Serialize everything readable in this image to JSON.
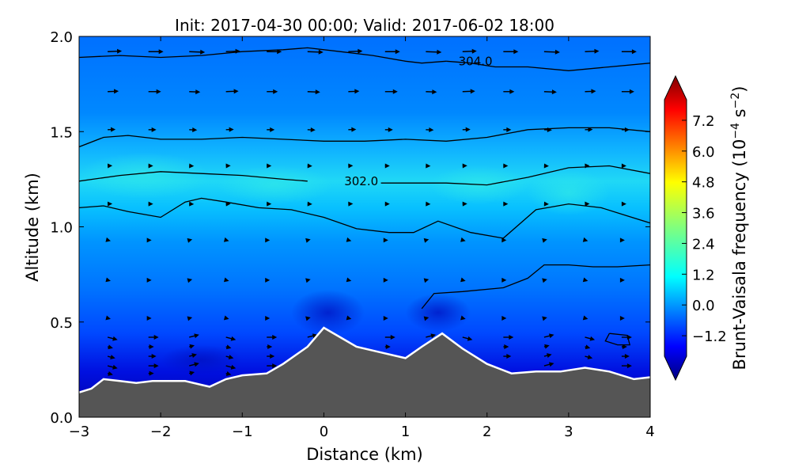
{
  "chart_data": {
    "type": "heatmap",
    "title": "Init: 2017-04-30 00:00; Valid: 2017-06-02 18:00",
    "xlabel": "Distance (km)",
    "ylabel": "Altitude (km)",
    "colorbar_label": "Brunt-Vaisala frequency (10$^{-4}$ s$^{-2}$)",
    "colorbar_label_text": "Brunt-Vaisala frequency (10",
    "colorbar_label_exp": "−4",
    "colorbar_label_unit": " s",
    "colorbar_label_unit_exp": "−2",
    "colorbar_label_close": ")",
    "xlim": [
      -3,
      4
    ],
    "ylim": [
      0.0,
      2.0
    ],
    "x_ticks": [
      -3,
      -2,
      -1,
      0,
      1,
      2,
      3,
      4
    ],
    "x_tick_labels": [
      "−3",
      "−2",
      "−1",
      "0",
      "1",
      "2",
      "3",
      "4"
    ],
    "y_ticks": [
      0.0,
      0.5,
      1.0,
      1.5,
      2.0
    ],
    "y_tick_labels": [
      "0.0",
      "0.5",
      "1.0",
      "1.5",
      "2.0"
    ],
    "colorbar_range": [
      -2.0,
      8.0
    ],
    "colorbar_ticks": [
      -1.2,
      0.0,
      1.2,
      2.4,
      3.6,
      4.8,
      6.0,
      7.2
    ],
    "colorbar_tick_labels": [
      "−1.2",
      "0.0",
      "1.2",
      "2.4",
      "3.6",
      "4.8",
      "6.0",
      "7.2"
    ],
    "colormap": "jet",
    "terrain_color": "#555555",
    "terrain_profile": {
      "x": [
        -3.0,
        -2.85,
        -2.7,
        -2.5,
        -2.3,
        -2.1,
        -1.9,
        -1.7,
        -1.5,
        -1.4,
        -1.2,
        -1.0,
        -0.7,
        -0.5,
        -0.2,
        0.0,
        0.2,
        0.4,
        0.7,
        1.0,
        1.2,
        1.45,
        1.7,
        2.0,
        2.3,
        2.6,
        2.9,
        3.2,
        3.5,
        3.8,
        4.0
      ],
      "y": [
        0.13,
        0.15,
        0.2,
        0.19,
        0.18,
        0.19,
        0.19,
        0.19,
        0.17,
        0.16,
        0.2,
        0.22,
        0.23,
        0.28,
        0.37,
        0.47,
        0.42,
        0.37,
        0.34,
        0.31,
        0.37,
        0.44,
        0.36,
        0.28,
        0.23,
        0.24,
        0.24,
        0.26,
        0.24,
        0.2,
        0.21
      ]
    },
    "potential_temperature_contours": [
      {
        "label": "304.0",
        "label_at": [
          1.65,
          1.87
        ],
        "x": [
          -3.0,
          -2.5,
          -2.0,
          -1.5,
          -1.0,
          -0.5,
          -0.2,
          0.2,
          0.6,
          1.0,
          1.2,
          1.5
        ],
        "y": [
          1.89,
          1.9,
          1.89,
          1.9,
          1.92,
          1.93,
          1.94,
          1.92,
          1.9,
          1.87,
          1.86,
          1.87
        ]
      },
      {
        "x": [
          1.5,
          1.8,
          2.1,
          2.5,
          3.0,
          3.5,
          4.0
        ],
        "y": [
          1.87,
          1.86,
          1.84,
          1.84,
          1.82,
          1.84,
          1.86
        ]
      },
      {
        "x": [
          -3.0,
          -2.7,
          -2.4,
          -2.0,
          -1.5,
          -1.0,
          -0.5,
          0.0,
          0.5,
          1.0,
          1.5,
          2.0,
          2.5,
          3.0,
          3.5,
          4.0
        ],
        "y": [
          1.42,
          1.47,
          1.48,
          1.46,
          1.46,
          1.47,
          1.46,
          1.45,
          1.45,
          1.46,
          1.45,
          1.47,
          1.51,
          1.52,
          1.52,
          1.5
        ]
      },
      {
        "label": "302.0",
        "label_at": [
          0.25,
          1.24
        ],
        "x": [
          -3.0,
          -2.5,
          -2.0,
          -1.5,
          -1.0,
          -0.5,
          -0.2
        ],
        "y": [
          1.24,
          1.27,
          1.29,
          1.28,
          1.27,
          1.25,
          1.24
        ]
      },
      {
        "x": [
          0.7,
          1.0,
          1.5,
          2.0,
          2.5,
          3.0,
          3.5,
          4.0
        ],
        "y": [
          1.23,
          1.23,
          1.23,
          1.22,
          1.26,
          1.31,
          1.32,
          1.28
        ]
      },
      {
        "x": [
          -3.0,
          -2.7,
          -2.4,
          -2.0,
          -1.7,
          -1.5,
          -1.2,
          -0.8,
          -0.4,
          0.0,
          0.4,
          0.8,
          1.1,
          1.4,
          1.8,
          2.2,
          2.6,
          3.0,
          3.4,
          3.7,
          4.0
        ],
        "y": [
          1.1,
          1.11,
          1.08,
          1.05,
          1.13,
          1.15,
          1.13,
          1.1,
          1.09,
          1.05,
          0.99,
          0.97,
          0.97,
          1.03,
          0.97,
          0.94,
          1.09,
          1.12,
          1.1,
          1.06,
          1.02
        ]
      },
      {
        "x": [
          3.5,
          3.72,
          3.75,
          3.6,
          3.45,
          3.5
        ],
        "y": [
          0.44,
          0.43,
          0.38,
          0.38,
          0.4,
          0.44
        ]
      },
      {
        "x": [
          1.2,
          1.35,
          1.7,
          2.2,
          2.5,
          2.7,
          3.0,
          3.3,
          3.6,
          4.0
        ],
        "y": [
          0.57,
          0.65,
          0.66,
          0.68,
          0.73,
          0.8,
          0.8,
          0.79,
          0.79,
          0.8
        ]
      }
    ]
  }
}
